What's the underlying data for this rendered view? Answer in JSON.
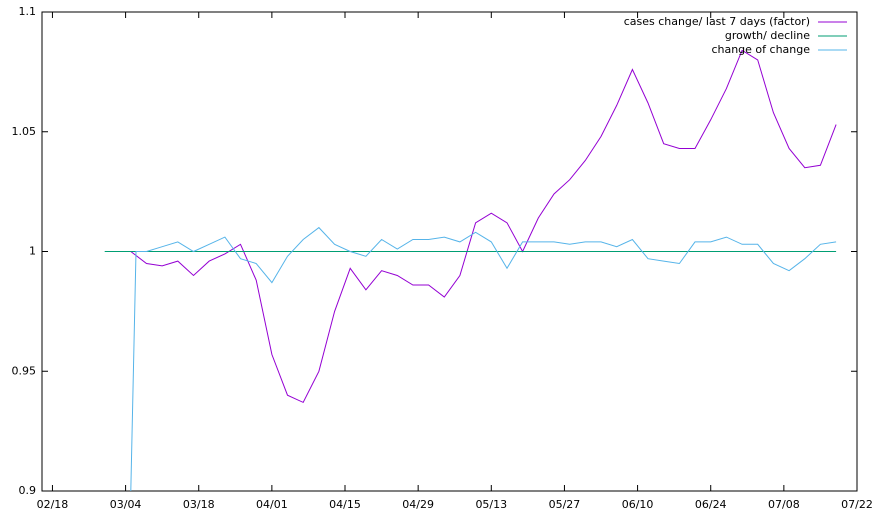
{
  "chart_data": {
    "type": "line",
    "legend": "top-right",
    "xlim": [
      "02/16",
      "07/22"
    ],
    "xticks": [
      "02/18",
      "03/04",
      "03/18",
      "04/01",
      "04/15",
      "04/29",
      "05/13",
      "05/27",
      "06/10",
      "06/24",
      "07/08",
      "07/22"
    ],
    "ylim": [
      0.9,
      1.1
    ],
    "yticks": [
      0.9,
      0.95,
      1,
      1.05,
      1.1
    ],
    "series": [
      {
        "name": "cases change/ last 7 days (factor)",
        "color": "#9400d3",
        "x": [
          "03/05",
          "03/08",
          "03/11",
          "03/14",
          "03/17",
          "03/20",
          "03/23",
          "03/26",
          "03/29",
          "04/01",
          "04/04",
          "04/07",
          "04/10",
          "04/13",
          "04/16",
          "04/19",
          "04/22",
          "04/25",
          "04/28",
          "05/01",
          "05/04",
          "05/07",
          "05/10",
          "05/13",
          "05/16",
          "05/19",
          "05/22",
          "05/25",
          "05/28",
          "05/31",
          "06/03",
          "06/06",
          "06/09",
          "06/12",
          "06/15",
          "06/18",
          "06/21",
          "06/24",
          "06/27",
          "06/30",
          "07/03",
          "07/06",
          "07/09",
          "07/12",
          "07/15",
          "07/18"
        ],
        "values": [
          1.0,
          0.995,
          0.994,
          0.996,
          0.99,
          0.996,
          0.999,
          1.003,
          0.988,
          0.957,
          0.94,
          0.937,
          0.95,
          0.975,
          0.993,
          0.984,
          0.992,
          0.99,
          0.986,
          0.986,
          0.981,
          0.99,
          1.012,
          1.016,
          1.012,
          1.0,
          1.014,
          1.024,
          1.03,
          1.038,
          1.048,
          1.061,
          1.076,
          1.062,
          1.045,
          1.043,
          1.043,
          1.055,
          1.068,
          1.084,
          1.08,
          1.058,
          1.043,
          1.035,
          1.036,
          1.053
        ]
      },
      {
        "name": "growth/ decline",
        "color": "#009e73",
        "x": [
          "02/28",
          "07/18"
        ],
        "values": [
          1,
          1
        ]
      },
      {
        "name": "change of change",
        "color": "#56b4e9",
        "x": [
          "03/05",
          "03/06",
          "03/08",
          "03/11",
          "03/14",
          "03/17",
          "03/20",
          "03/23",
          "03/26",
          "03/29",
          "04/01",
          "04/04",
          "04/07",
          "04/10",
          "04/13",
          "04/16",
          "04/19",
          "04/22",
          "04/25",
          "04/28",
          "05/01",
          "05/04",
          "05/07",
          "05/10",
          "05/13",
          "05/16",
          "05/19",
          "05/22",
          "05/25",
          "05/28",
          "05/31",
          "06/03",
          "06/06",
          "06/09",
          "06/12",
          "06/15",
          "06/18",
          "06/21",
          "06/24",
          "06/27",
          "06/30",
          "07/03",
          "07/06",
          "07/09",
          "07/12",
          "07/15",
          "07/18"
        ],
        "values": [
          0.9,
          1.0,
          1.0,
          1.002,
          1.004,
          1.0,
          1.003,
          1.006,
          0.997,
          0.995,
          0.987,
          0.998,
          1.005,
          1.01,
          1.003,
          1.0,
          0.998,
          1.005,
          1.001,
          1.005,
          1.005,
          1.006,
          1.004,
          1.008,
          1.004,
          0.993,
          1.004,
          1.004,
          1.004,
          1.003,
          1.004,
          1.004,
          1.002,
          1.005,
          0.997,
          0.996,
          0.995,
          1.004,
          1.004,
          1.006,
          1.003,
          1.003,
          0.995,
          0.992,
          0.997,
          1.003,
          1.004
        ]
      }
    ]
  }
}
